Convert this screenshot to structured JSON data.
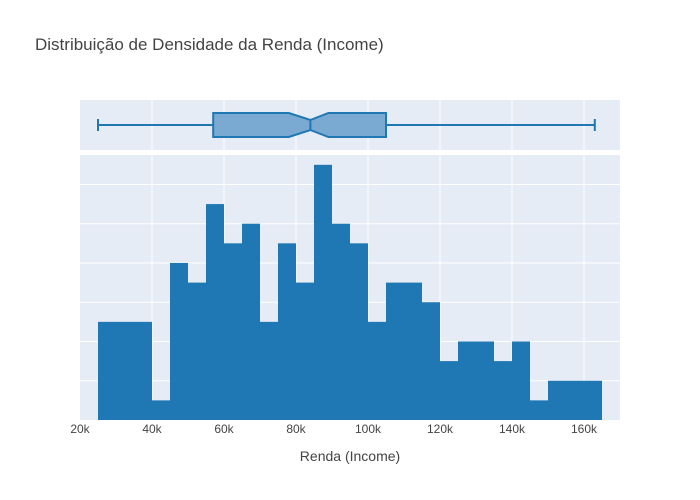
{
  "chart_data": {
    "type": "bar",
    "title": "Distribuição de Densidade da Renda (Income)",
    "xlabel": "Renda (Income)",
    "ylabel": "",
    "xlim": [
      20000,
      170000
    ],
    "ylim": [
      0,
      13.5
    ],
    "grid": true,
    "colors": {
      "bar": "#1f77b4",
      "plot_bg": "#e5ecf6",
      "box_fill": "#7aaad2",
      "box_line": "#1f77b4"
    },
    "x_ticks": [
      20000,
      40000,
      60000,
      80000,
      100000,
      120000,
      140000,
      160000
    ],
    "x_tick_labels": [
      "20k",
      "40k",
      "60k",
      "80k",
      "100k",
      "120k",
      "140k",
      "160k"
    ],
    "bin_width": 5000,
    "bins": [
      {
        "x0": 25000,
        "count": 5
      },
      {
        "x0": 30000,
        "count": 5
      },
      {
        "x0": 35000,
        "count": 5
      },
      {
        "x0": 40000,
        "count": 1
      },
      {
        "x0": 45000,
        "count": 8
      },
      {
        "x0": 50000,
        "count": 7
      },
      {
        "x0": 55000,
        "count": 11
      },
      {
        "x0": 60000,
        "count": 9
      },
      {
        "x0": 65000,
        "count": 10
      },
      {
        "x0": 70000,
        "count": 5
      },
      {
        "x0": 75000,
        "count": 9
      },
      {
        "x0": 80000,
        "count": 7
      },
      {
        "x0": 85000,
        "count": 13
      },
      {
        "x0": 90000,
        "count": 10
      },
      {
        "x0": 95000,
        "count": 9
      },
      {
        "x0": 100000,
        "count": 5
      },
      {
        "x0": 105000,
        "count": 7
      },
      {
        "x0": 110000,
        "count": 7
      },
      {
        "x0": 115000,
        "count": 6
      },
      {
        "x0": 120000,
        "count": 3
      },
      {
        "x0": 125000,
        "count": 4
      },
      {
        "x0": 130000,
        "count": 4
      },
      {
        "x0": 135000,
        "count": 3
      },
      {
        "x0": 140000,
        "count": 4
      },
      {
        "x0": 145000,
        "count": 1
      },
      {
        "x0": 150000,
        "count": 2
      },
      {
        "x0": 155000,
        "count": 2
      },
      {
        "x0": 160000,
        "count": 2
      }
    ],
    "box": {
      "min": 25000,
      "q1": 57000,
      "notch_low": 78000,
      "median": 84000,
      "notch_high": 89000,
      "q3": 105000,
      "max": 163000
    }
  }
}
